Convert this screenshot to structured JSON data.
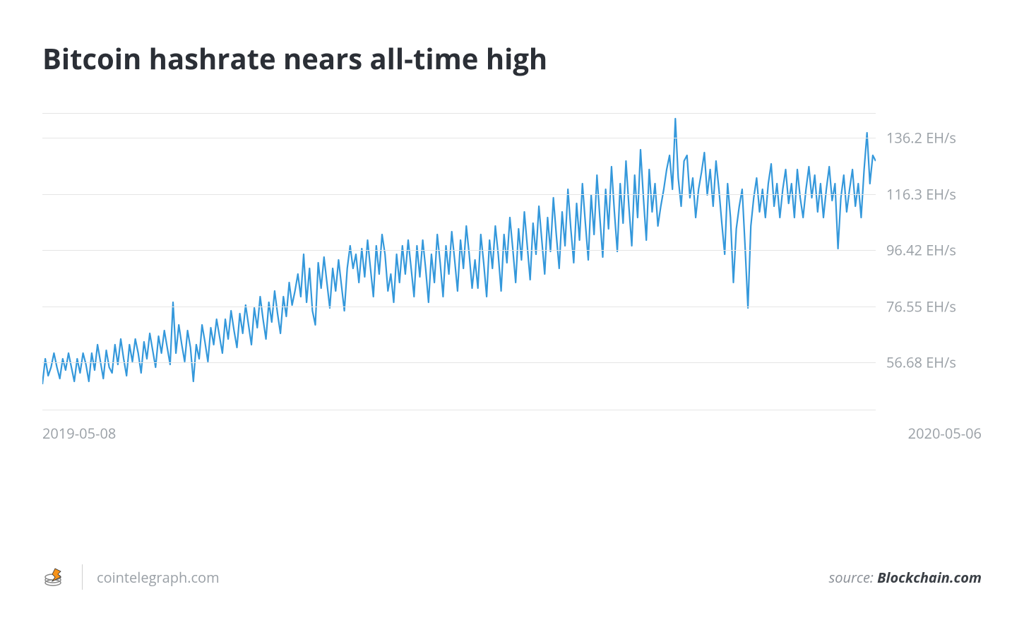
{
  "title": "Bitcoin hashrate nears all-time high",
  "chart": {
    "type": "line",
    "line_color": "#3498db",
    "line_width": 2.2,
    "background_color": "#ffffff",
    "grid_color": "#e5e5e5",
    "label_color": "#9aa0a6",
    "label_fontsize": 20,
    "ymin": 40,
    "ymax": 145,
    "y_ticks": [
      56.68,
      76.55,
      96.42,
      116.3,
      136.2
    ],
    "y_tick_labels": [
      "56.68 EH/s",
      "76.55 EH/s",
      "96.42 EH/s",
      "116.3 EH/s",
      "136.2 EH/s"
    ],
    "x_start_label": "2019-05-08",
    "x_end_label": "2020-05-06",
    "values": [
      49,
      58,
      52,
      55,
      60,
      55,
      51,
      58,
      54,
      60,
      55,
      50,
      58,
      53,
      60,
      56,
      50,
      60,
      54,
      63,
      57,
      51,
      61,
      55,
      53,
      63,
      56,
      65,
      58,
      52,
      63,
      57,
      65,
      60,
      53,
      64,
      58,
      67,
      61,
      55,
      66,
      60,
      68,
      62,
      56,
      78,
      60,
      70,
      63,
      57,
      68,
      62,
      50,
      63,
      58,
      70,
      64,
      57,
      69,
      63,
      72,
      66,
      60,
      72,
      65,
      75,
      68,
      62,
      74,
      67,
      77,
      70,
      63,
      76,
      69,
      80,
      72,
      65,
      78,
      71,
      82,
      74,
      67,
      80,
      73,
      85,
      77,
      82,
      88,
      80,
      95,
      78,
      90,
      75,
      70,
      92,
      83,
      94,
      85,
      76,
      90,
      82,
      93,
      84,
      75,
      90,
      98,
      90,
      95,
      85,
      97,
      87,
      100,
      90,
      80,
      98,
      88,
      102,
      95,
      82,
      88,
      78,
      95,
      85,
      98,
      88,
      100,
      90,
      80,
      98,
      87,
      100,
      90,
      78,
      95,
      85,
      102,
      92,
      80,
      98,
      88,
      103,
      93,
      82,
      100,
      90,
      105,
      95,
      83,
      93,
      83,
      102,
      92,
      80,
      100,
      90,
      105,
      95,
      82,
      102,
      92,
      108,
      97,
      85,
      104,
      93,
      110,
      98,
      86,
      106,
      95,
      112,
      100,
      88,
      108,
      96,
      115,
      102,
      90,
      110,
      98,
      118,
      104,
      92,
      113,
      100,
      120,
      106,
      93,
      116,
      102,
      123,
      108,
      94,
      118,
      104,
      126,
      110,
      96,
      120,
      106,
      128,
      112,
      98,
      123,
      108,
      132,
      115,
      100,
      125,
      110,
      120,
      105,
      112,
      118,
      125,
      130,
      118,
      143,
      122,
      112,
      128,
      130,
      115,
      122,
      108,
      118,
      124,
      131,
      116,
      125,
      112,
      128,
      118,
      106,
      95,
      120,
      108,
      85,
      104,
      112,
      118,
      98,
      76,
      105,
      115,
      122,
      110,
      118,
      108,
      120,
      127,
      112,
      120,
      108,
      118,
      125,
      113,
      120,
      108,
      125,
      115,
      108,
      118,
      126,
      115,
      123,
      110,
      120,
      108,
      118,
      126,
      114,
      120,
      97,
      115,
      123,
      110,
      118,
      125,
      112,
      120,
      108,
      125,
      138,
      120,
      130,
      128
    ]
  },
  "footer": {
    "site": "cointelegraph.com",
    "source_prefix": "source: ",
    "source_name": "Blockchain.com"
  }
}
